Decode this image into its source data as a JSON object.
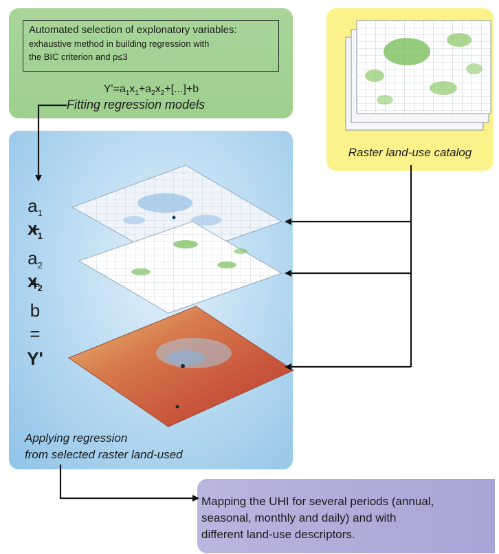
{
  "selection": {
    "title": "Automated selection of explonatory variables:",
    "line1": "exhaustive method in building regression with",
    "line2": "the BIC criterion and p≤3"
  },
  "equation": {
    "prefix": "Y'=a",
    "sub1": "1",
    "mid1": "x",
    "sub2": "1",
    "mid2": "+a",
    "sub3": "2",
    "mid3": "x",
    "sub4": "2",
    "suffix": "+[...]+b"
  },
  "fitting_label": "Fitting regression models",
  "catalog_label": "Raster land-use catalog",
  "lhs": {
    "a1": "a",
    "a1_sub": "1",
    "x1": "x",
    "x1_sub": "1",
    "plus1": "+",
    "a2": "a",
    "a2_sub": "2",
    "x2": "x",
    "x2_sub": "2",
    "plus2": "+",
    "b": "b",
    "equals": "=",
    "y": "Y'"
  },
  "applying": {
    "line1": "Applying regression",
    "line2": "from selected raster land-used"
  },
  "mapping": {
    "line1": "Mapping the UHI for several periods (annual,",
    "line2": "seasonal, monthly and daily) and with",
    "line3": "different land-use descriptors."
  },
  "colors": {
    "green": "#a9d59a",
    "yellow": "#fbf38a",
    "blue": "#8fc3e8",
    "purple": "#b1ade0",
    "heat_red": "#c8543a",
    "heat_yellow": "#e9d88a"
  }
}
